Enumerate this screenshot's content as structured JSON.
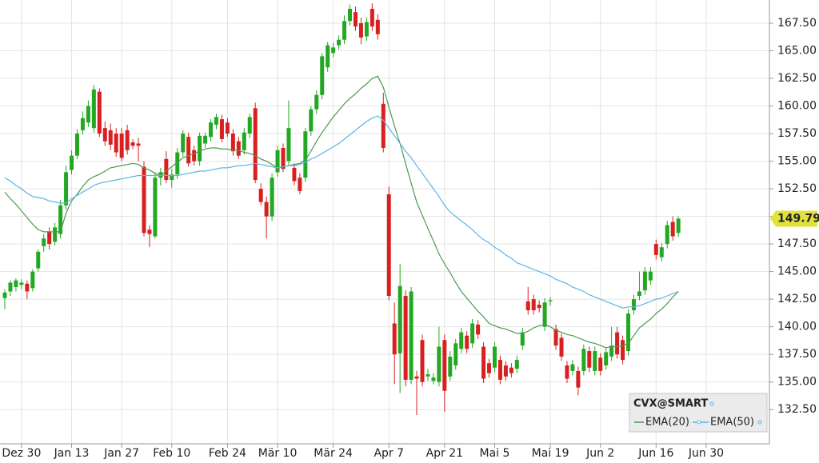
{
  "chart_data": {
    "type": "candlestick",
    "categories": [
      null,
      null,
      null,
      "Dez 30",
      null,
      null,
      null,
      null,
      null,
      null,
      null,
      null,
      "Jan 13",
      null,
      null,
      null,
      null,
      null,
      null,
      null,
      null,
      "Jan 27",
      null,
      null,
      null,
      null,
      null,
      null,
      null,
      null,
      "Feb 10",
      null,
      null,
      null,
      null,
      null,
      null,
      null,
      null,
      null,
      "Feb 24",
      null,
      null,
      null,
      null,
      null,
      null,
      null,
      null,
      "Mär 10",
      null,
      null,
      null,
      null,
      null,
      null,
      null,
      null,
      null,
      "Mär 24",
      null,
      null,
      null,
      null,
      null,
      null,
      null,
      null,
      null,
      "Apr 7",
      null,
      null,
      null,
      null,
      null,
      null,
      null,
      null,
      null,
      "Apr 21",
      null,
      null,
      null,
      null,
      null,
      null,
      null,
      null,
      "Mai 5",
      null,
      null,
      null,
      null,
      null,
      null,
      null,
      null,
      null,
      "Mai 19",
      null,
      null,
      null,
      null,
      null,
      null,
      null,
      null,
      "Jun 2",
      null,
      null,
      null,
      null,
      null,
      null,
      null,
      null,
      null,
      "Jun 16",
      null,
      null,
      null,
      null,
      null,
      null,
      null,
      null,
      "Jun 30"
    ],
    "ohlc": {
      "name": "CVX@SMART",
      "up_color": "#22a822",
      "down_color": "#d82020",
      "open": [
        142.6,
        143.2,
        143.6,
        143.8,
        143.9,
        143.5,
        145.3,
        147.3,
        148.6,
        147.7,
        148.4,
        151.0,
        154.2,
        155.5,
        157.8,
        158.5,
        158.0,
        161.3,
        158.0,
        157.8,
        157.5,
        157.5,
        157.8,
        156.7,
        156.6,
        154.5,
        148.8,
        148.2,
        153.5,
        155.2,
        153.3,
        153.8,
        155.8,
        157.2,
        156.0,
        155.0,
        156.6,
        157.2,
        158.3,
        158.8,
        158.5,
        157.5,
        156.8,
        156.0,
        157.5,
        159.8,
        152.5,
        151.3,
        150.0,
        154.0,
        156.2,
        155.0,
        154.4,
        153.5,
        153.5,
        157.7,
        159.7,
        161.0,
        163.5,
        164.8,
        165.5,
        166.0,
        167.7,
        168.5,
        167.5,
        166.3,
        168.8,
        167.8,
        160.2,
        152.0,
        140.3,
        137.6,
        142.8,
        135.2,
        135.5,
        138.8,
        135.5,
        135.1,
        135.0,
        138.8,
        135.5,
        136.5,
        138.0,
        139.2,
        138.5,
        140.2,
        138.2,
        136.7,
        136.3,
        137.0,
        136.5,
        136.3,
        136.2,
        138.3,
        142.3,
        142.5,
        142.0,
        140.0,
        142.3,
        139.8,
        139.0,
        136.5,
        136.0,
        136.0,
        136.0,
        137.8,
        136.0,
        137.2,
        136.5,
        137.3,
        139.5,
        138.8,
        137.8,
        141.5,
        142.8,
        143.3,
        144.2,
        147.5,
        146.3,
        147.5,
        149.5,
        148.5,
        null,
        null,
        null,
        null,
        null
      ],
      "high": [
        143.4,
        144.2,
        144.4,
        144.3,
        144.2,
        145.2,
        147.0,
        148.4,
        149.0,
        149.4,
        151.5,
        154.6,
        156.0,
        157.9,
        159.5,
        160.5,
        161.9,
        161.6,
        158.6,
        158.4,
        158.0,
        158.0,
        158.3,
        157.0,
        157.1,
        155.0,
        149.2,
        154.0,
        154.4,
        155.9,
        154.3,
        156.2,
        157.8,
        157.6,
        156.4,
        157.6,
        157.6,
        158.8,
        159.3,
        159.2,
        158.9,
        157.9,
        157.2,
        158.0,
        159.3,
        160.3,
        153.0,
        151.8,
        153.9,
        156.4,
        156.6,
        160.5,
        154.8,
        153.9,
        158.0,
        160.0,
        161.4,
        164.8,
        165.8,
        165.7,
        166.4,
        168.2,
        169.2,
        169.0,
        168.0,
        168.0,
        169.3,
        168.3,
        161.2,
        152.7,
        142.2,
        145.7,
        143.3,
        143.6,
        136.0,
        139.3,
        136.2,
        135.8,
        140.0,
        139.3,
        137.8,
        138.9,
        139.9,
        139.6,
        140.7,
        140.6,
        138.6,
        137.1,
        138.6,
        137.4,
        136.9,
        136.7,
        137.4,
        139.9,
        143.6,
        142.9,
        142.4,
        142.6,
        142.7,
        140.2,
        139.4,
        136.9,
        137.0,
        136.4,
        138.4,
        138.2,
        138.2,
        137.6,
        138.1,
        140.0,
        140.0,
        139.2,
        141.6,
        142.9,
        145.0,
        145.4,
        145.4,
        147.9,
        147.6,
        149.6,
        150.0,
        150.0,
        null,
        null,
        null,
        null,
        null
      ],
      "low": [
        141.6,
        142.8,
        143.2,
        143.4,
        142.5,
        143.2,
        145.0,
        146.8,
        147.0,
        147.4,
        148.0,
        150.6,
        153.8,
        155.2,
        157.4,
        158.1,
        157.6,
        157.2,
        156.4,
        156.0,
        155.4,
        155.0,
        155.6,
        156.1,
        155.0,
        148.2,
        147.2,
        148.0,
        152.8,
        153.0,
        152.6,
        153.4,
        155.4,
        154.5,
        154.6,
        154.6,
        156.2,
        156.8,
        157.9,
        156.7,
        157.2,
        155.5,
        155.2,
        155.6,
        157.1,
        153.0,
        151.0,
        148.0,
        149.6,
        153.6,
        154.0,
        154.6,
        152.8,
        152.0,
        153.1,
        157.3,
        159.3,
        160.6,
        163.1,
        164.4,
        165.1,
        165.6,
        167.3,
        166.8,
        165.6,
        165.9,
        166.8,
        166.0,
        155.8,
        142.4,
        134.8,
        134.0,
        134.6,
        134.8,
        132.0,
        134.6,
        135.1,
        134.8,
        134.6,
        132.3,
        135.1,
        136.1,
        137.6,
        137.6,
        138.1,
        138.9,
        134.9,
        135.4,
        135.9,
        134.8,
        135.1,
        135.4,
        135.8,
        137.9,
        141.1,
        141.1,
        141.3,
        139.6,
        141.9,
        137.9,
        136.9,
        134.9,
        135.6,
        133.8,
        135.6,
        135.9,
        135.6,
        135.6,
        136.1,
        136.9,
        137.1,
        136.6,
        137.4,
        141.1,
        142.4,
        142.9,
        143.8,
        146.1,
        145.9,
        147.1,
        147.8,
        148.1,
        null,
        null,
        null,
        null,
        null
      ],
      "close": [
        143.1,
        144.0,
        144.2,
        144.0,
        143.2,
        145.0,
        146.8,
        148.0,
        147.5,
        149.0,
        151.0,
        154.0,
        155.5,
        157.5,
        158.9,
        160.0,
        161.5,
        157.5,
        156.8,
        156.5,
        155.8,
        155.3,
        156.0,
        156.4,
        156.4,
        148.5,
        148.4,
        153.5,
        154.0,
        153.3,
        153.8,
        155.8,
        157.5,
        154.8,
        155.0,
        157.3,
        157.3,
        158.5,
        159.0,
        157.0,
        157.5,
        155.9,
        155.5,
        157.6,
        159.0,
        153.3,
        151.3,
        150.0,
        153.5,
        156.0,
        154.3,
        158.0,
        153.2,
        152.3,
        157.7,
        159.7,
        161.0,
        164.5,
        165.5,
        165.3,
        166.0,
        167.7,
        168.8,
        167.2,
        166.2,
        167.6,
        167.2,
        166.5,
        156.2,
        142.8,
        137.5,
        143.7,
        135.2,
        143.2,
        135.3,
        135.0,
        135.7,
        135.4,
        138.2,
        134.2,
        137.3,
        138.5,
        139.5,
        138.0,
        140.3,
        139.3,
        135.3,
        135.8,
        138.2,
        135.2,
        135.5,
        135.8,
        137.0,
        139.5,
        141.5,
        141.5,
        141.7,
        142.2,
        142.4,
        138.3,
        137.3,
        135.3,
        136.6,
        134.5,
        138.0,
        136.3,
        137.8,
        136.0,
        137.7,
        138.3,
        137.5,
        137.0,
        141.2,
        142.5,
        143.2,
        145.0,
        145.0,
        146.5,
        147.2,
        149.2,
        148.2,
        149.79,
        null,
        null,
        null,
        null,
        null
      ]
    },
    "series": [
      {
        "name": "EMA(20)",
        "color": "#4e9a4e",
        "values": [
          152.2,
          151.6,
          151.1,
          150.5,
          149.9,
          149.3,
          148.8,
          148.6,
          148.6,
          148.6,
          148.6,
          150.3,
          151.4,
          152.0,
          152.7,
          153.3,
          153.6,
          153.8,
          154.1,
          154.4,
          154.5,
          154.6,
          154.7,
          154.8,
          154.7,
          154.4,
          154.2,
          153.9,
          153.7,
          154.1,
          154.5,
          154.9,
          155.3,
          155.5,
          155.7,
          155.9,
          156.1,
          156.2,
          156.2,
          156.1,
          156.1,
          156.0,
          156.0,
          155.8,
          155.7,
          155.5,
          155.2,
          155.0,
          154.7,
          154.4,
          154.5,
          154.6,
          154.7,
          154.8,
          155.1,
          155.9,
          156.8,
          157.6,
          158.3,
          159.0,
          159.6,
          160.2,
          160.7,
          161.1,
          161.6,
          162.0,
          162.5,
          162.7,
          161.7,
          159.9,
          158.2,
          156.6,
          154.8,
          153.0,
          151.3,
          150.1,
          148.9,
          147.8,
          146.6,
          145.7,
          144.9,
          144.0,
          143.2,
          142.6,
          142.0,
          141.4,
          140.9,
          140.3,
          140.1,
          139.9,
          139.8,
          139.6,
          139.4,
          139.4,
          139.6,
          139.9,
          140.1,
          140.2,
          140.0,
          139.7,
          139.5,
          139.3,
          139.2,
          139.0,
          138.8,
          138.6,
          138.5,
          138.3,
          138.1,
          138.2,
          138.2,
          138.3,
          138.5,
          139.2,
          139.9,
          140.3,
          140.7,
          141.2,
          141.6,
          142.1,
          142.7,
          143.2,
          null,
          null,
          null,
          null,
          null
        ]
      },
      {
        "name": "EMA(50)",
        "color": "#5ab6e6",
        "values": [
          153.5,
          153.2,
          152.8,
          152.5,
          152.1,
          151.8,
          151.7,
          151.6,
          151.4,
          151.3,
          151.2,
          151.2,
          151.6,
          151.9,
          152.2,
          152.5,
          152.8,
          153.0,
          153.1,
          153.2,
          153.3,
          153.4,
          153.5,
          153.6,
          153.7,
          153.7,
          153.7,
          153.7,
          153.7,
          153.7,
          153.7,
          153.7,
          153.8,
          153.9,
          154.0,
          154.1,
          154.1,
          154.2,
          154.3,
          154.4,
          154.4,
          154.5,
          154.6,
          154.6,
          154.7,
          154.8,
          154.7,
          154.6,
          154.5,
          154.4,
          154.5,
          154.6,
          154.6,
          154.7,
          154.9,
          155.2,
          155.4,
          155.7,
          156.0,
          156.3,
          156.6,
          157.0,
          157.4,
          157.8,
          158.2,
          158.6,
          158.9,
          159.1,
          158.7,
          158.0,
          157.3,
          156.6,
          155.9,
          155.3,
          154.6,
          153.9,
          153.2,
          152.5,
          151.8,
          151.0,
          150.4,
          150.0,
          149.6,
          149.2,
          148.8,
          148.3,
          147.9,
          147.6,
          147.2,
          146.9,
          146.5,
          146.2,
          145.8,
          145.6,
          145.4,
          145.2,
          145.0,
          144.8,
          144.6,
          144.3,
          144.1,
          143.9,
          143.6,
          143.4,
          143.2,
          142.9,
          142.7,
          142.5,
          142.3,
          142.1,
          141.9,
          141.7,
          141.8,
          141.8,
          141.9,
          142.1,
          142.3,
          142.5,
          142.6,
          142.8,
          143.0,
          143.2,
          null,
          null,
          null,
          null,
          null
        ]
      }
    ],
    "last_price": 149.79,
    "ylim": [
      129.4,
      169.6
    ],
    "yticks": [
      {
        "value": 132.5,
        "label": "132.50"
      },
      {
        "value": 135,
        "label": "135.00"
      },
      {
        "value": 137.5,
        "label": "137.50"
      },
      {
        "value": 140,
        "label": "140.00"
      },
      {
        "value": 142.5,
        "label": "142.50"
      },
      {
        "value": 145,
        "label": "145.00"
      },
      {
        "value": 147.5,
        "label": "147.50"
      },
      {
        "value": 150,
        "label": "150.00"
      },
      {
        "value": 152.5,
        "label": "152.50"
      },
      {
        "value": 155,
        "label": "155.00"
      },
      {
        "value": 157.5,
        "label": "157.50"
      },
      {
        "value": 160,
        "label": "160.00"
      },
      {
        "value": 162.5,
        "label": "162.50"
      },
      {
        "value": 165,
        "label": "165.00"
      },
      {
        "value": 167.5,
        "label": "167.50"
      }
    ],
    "grid": true
  }
}
